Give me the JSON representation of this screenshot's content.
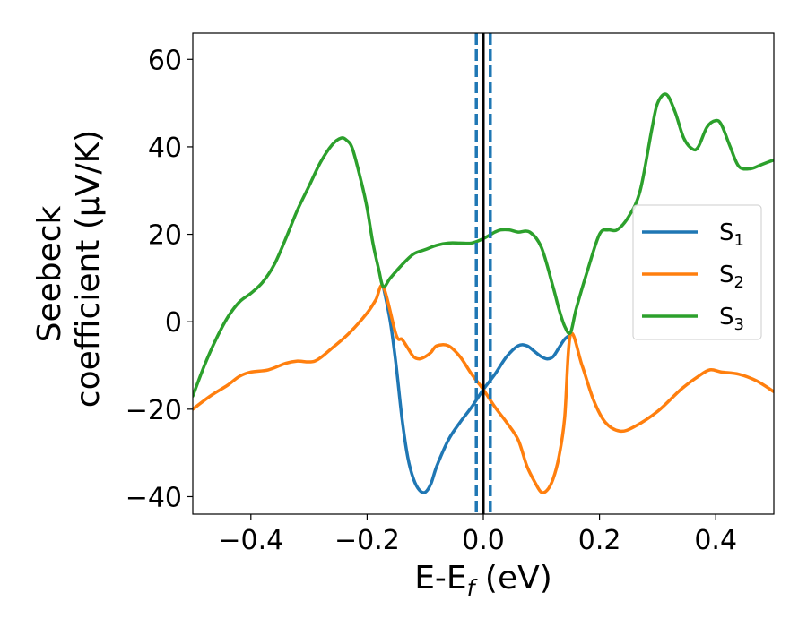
{
  "chart_data": {
    "type": "line",
    "title": "",
    "xlabel": {
      "main": "E-E",
      "sub": "f",
      "unit": " (eV)"
    },
    "ylabel": {
      "line1": "Seebeck",
      "line2": "coefficient  (μV/K)"
    },
    "xlim": [
      -0.5,
      0.5
    ],
    "ylim": [
      -44,
      66
    ],
    "x_ticks": [
      -0.4,
      -0.2,
      0.0,
      0.2,
      0.4
    ],
    "x_tick_labels": [
      "−0.4",
      "−0.2",
      "0.0",
      "0.2",
      "0.4"
    ],
    "y_ticks": [
      -40,
      -20,
      0,
      20,
      40,
      60
    ],
    "y_tick_labels": [
      "−40",
      "−20",
      "0",
      "20",
      "40",
      "60"
    ],
    "grid": false,
    "legend_position": "center-right",
    "vertical_lines": [
      {
        "x": -0.012,
        "style": "dashed",
        "color": "#1f77b4"
      },
      {
        "x": 0.0,
        "style": "solid",
        "color": "#000000"
      },
      {
        "x": 0.012,
        "style": "dashed",
        "color": "#1f77b4"
      }
    ],
    "series": [
      {
        "name": "S",
        "sub": "1",
        "color": "#1f77b4",
        "x": [
          -0.172,
          -0.16,
          -0.15,
          -0.14,
          -0.13,
          -0.12,
          -0.11,
          -0.1,
          -0.09,
          -0.08,
          -0.06,
          -0.04,
          -0.02,
          0.0,
          0.02,
          0.04,
          0.06,
          0.075,
          0.09,
          0.1,
          0.11,
          0.12,
          0.13,
          0.14,
          0.15
        ],
        "y": [
          8,
          0,
          -10,
          -22,
          -31,
          -36,
          -38.5,
          -39,
          -37,
          -33,
          -27,
          -23,
          -19.5,
          -15.5,
          -12,
          -8,
          -5.5,
          -5.5,
          -7,
          -8,
          -8.5,
          -8,
          -6,
          -4,
          -3
        ]
      },
      {
        "name": "S",
        "sub": "2",
        "color": "#ff7f0e",
        "x": [
          -0.5,
          -0.47,
          -0.44,
          -0.42,
          -0.4,
          -0.37,
          -0.34,
          -0.32,
          -0.29,
          -0.26,
          -0.23,
          -0.2,
          -0.185,
          -0.172,
          -0.15,
          -0.14,
          -0.13,
          -0.12,
          -0.11,
          -0.1,
          -0.09,
          -0.08,
          -0.06,
          -0.04,
          -0.02,
          0.0,
          0.02,
          0.04,
          0.06,
          0.075,
          0.09,
          0.1,
          0.11,
          0.12,
          0.13,
          0.14,
          0.15,
          0.17,
          0.19,
          0.21,
          0.235,
          0.26,
          0.3,
          0.34,
          0.37,
          0.39,
          0.41,
          0.44,
          0.47,
          0.5
        ],
        "y": [
          -20,
          -17,
          -14.5,
          -12.5,
          -11.5,
          -11,
          -9.5,
          -9,
          -9,
          -6,
          -2.5,
          2,
          5,
          8,
          -3,
          -4,
          -6,
          -8,
          -8.5,
          -8,
          -7,
          -5.5,
          -5.5,
          -8,
          -12,
          -15.5,
          -19.5,
          -23,
          -27,
          -33,
          -37,
          -39,
          -38.5,
          -36,
          -31,
          -22,
          -3,
          -10,
          -18,
          -23,
          -25,
          -24,
          -20.5,
          -15.5,
          -12.5,
          -11,
          -11.5,
          -12,
          -13.5,
          -16
        ]
      },
      {
        "name": "S",
        "sub": "3",
        "color": "#2ca02c",
        "x": [
          -0.5,
          -0.48,
          -0.46,
          -0.44,
          -0.42,
          -0.4,
          -0.38,
          -0.36,
          -0.34,
          -0.32,
          -0.3,
          -0.28,
          -0.26,
          -0.245,
          -0.235,
          -0.225,
          -0.21,
          -0.2,
          -0.19,
          -0.18,
          -0.172,
          -0.16,
          -0.14,
          -0.12,
          -0.1,
          -0.08,
          -0.06,
          -0.04,
          -0.02,
          0.0,
          0.02,
          0.03,
          0.045,
          0.06,
          0.08,
          0.1,
          0.12,
          0.13,
          0.14,
          0.15,
          0.16,
          0.18,
          0.2,
          0.215,
          0.23,
          0.25,
          0.27,
          0.29,
          0.3,
          0.315,
          0.33,
          0.345,
          0.36,
          0.37,
          0.385,
          0.4,
          0.41,
          0.425,
          0.44,
          0.46,
          0.48,
          0.5
        ],
        "y": [
          -17,
          -10,
          -4,
          1,
          4.5,
          6.5,
          9,
          13,
          19,
          25.5,
          31,
          36.5,
          40.5,
          42,
          41.5,
          39.5,
          32,
          26,
          18,
          12,
          8,
          10,
          13,
          15.5,
          16.5,
          17.5,
          18,
          18,
          18,
          19,
          20.5,
          21,
          21,
          20.5,
          20.5,
          17,
          8,
          3,
          -1,
          -2.5,
          3,
          12,
          20,
          21,
          21,
          24,
          30,
          44,
          50,
          52,
          48,
          42,
          39.5,
          40,
          44.5,
          46,
          45,
          40,
          35.5,
          35,
          36,
          37
        ]
      }
    ]
  }
}
